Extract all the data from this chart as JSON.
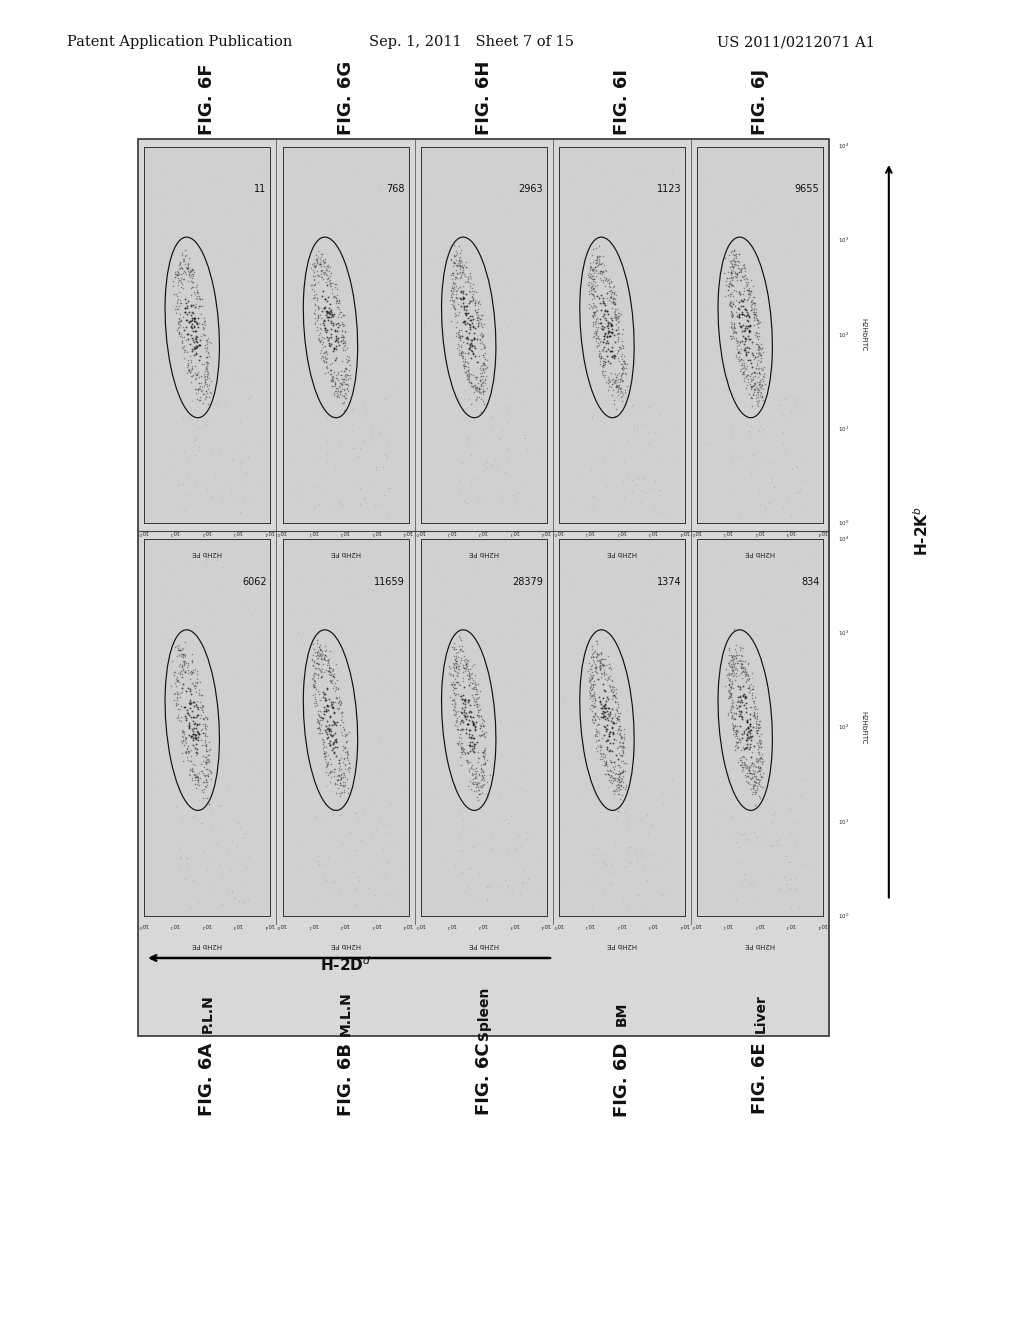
{
  "header_left": "Patent Application Publication",
  "header_center": "Sep. 1, 2011   Sheet 7 of 15",
  "header_right": "US 2011/0212071 A1",
  "background_color": "#ffffff",
  "outer_box_bg": "#d8d8d8",
  "panel_bg": "#d0d0d0",
  "top_labels": [
    "FIG. 6F",
    "FIG. 6G",
    "FIG. 6H",
    "FIG. 6I",
    "FIG. 6J"
  ],
  "bottom_labels": [
    "FIG. 6A",
    "FIG. 6B",
    "FIG. 6C",
    "FIG. 6D",
    "FIG. 6E"
  ],
  "col_labels": [
    "P.L.N",
    "M.L.N",
    "Spleen",
    "BM",
    "Liver"
  ],
  "top_row_numbers": [
    "11",
    "768",
    "2963",
    "1123",
    "9655"
  ],
  "bottom_row_numbers": [
    "6062",
    "11659",
    "28379",
    "1374",
    "834"
  ],
  "x_axis_label": "H2Hb PE",
  "y_axis_label": "H2HbFiTC",
  "right_arrow_label": "H-2Kb",
  "arrow_label": "H-2Dd",
  "border_color": "#444444"
}
